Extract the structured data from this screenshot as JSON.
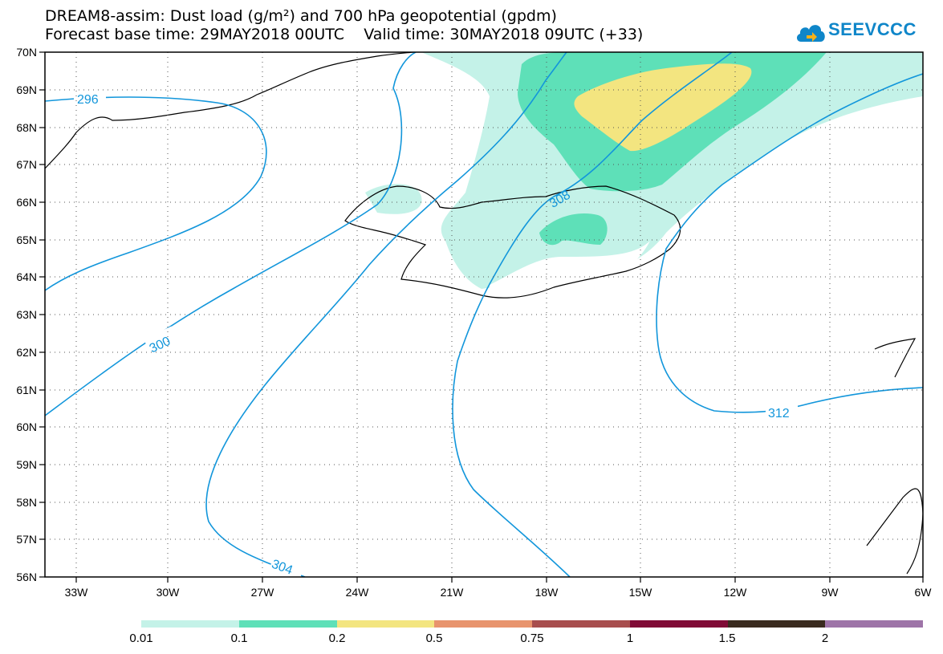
{
  "title": {
    "line1": "DREAM8-assim: Dust load (g/m²) and 700 hPa geopotential (gpdm)",
    "line2": "Forecast base time: 29MAY2018 00UTC    Valid time: 30MAY2018 09UTC (+33)"
  },
  "logo": {
    "text": "SEEVCCC",
    "icon": "cloud-icon",
    "color": "#0f86c9"
  },
  "axes": {
    "lat_labels": [
      "70N",
      "69N",
      "68N",
      "67N",
      "66N",
      "65N",
      "64N",
      "63N",
      "62N",
      "61N",
      "60N",
      "59N",
      "58N",
      "57N",
      "56N"
    ],
    "lon_labels": [
      "33W",
      "30W",
      "27W",
      "24W",
      "21W",
      "18W",
      "15W",
      "12W",
      "9W",
      "6W"
    ]
  },
  "isolines": {
    "labels": [
      "296",
      "300",
      "304",
      "308",
      "312"
    ],
    "color": "#1296db"
  },
  "colorbar": {
    "colors": [
      "#c4f2e8",
      "#5ee0b8",
      "#f3e580",
      "#e8946d",
      "#a84e4e",
      "#800a36",
      "#3a2b1f",
      "#9e74a8"
    ],
    "labels": [
      "0.01",
      "0.1",
      "0.2",
      "0.5",
      "0.75",
      "1",
      "1.5",
      "2"
    ]
  }
}
